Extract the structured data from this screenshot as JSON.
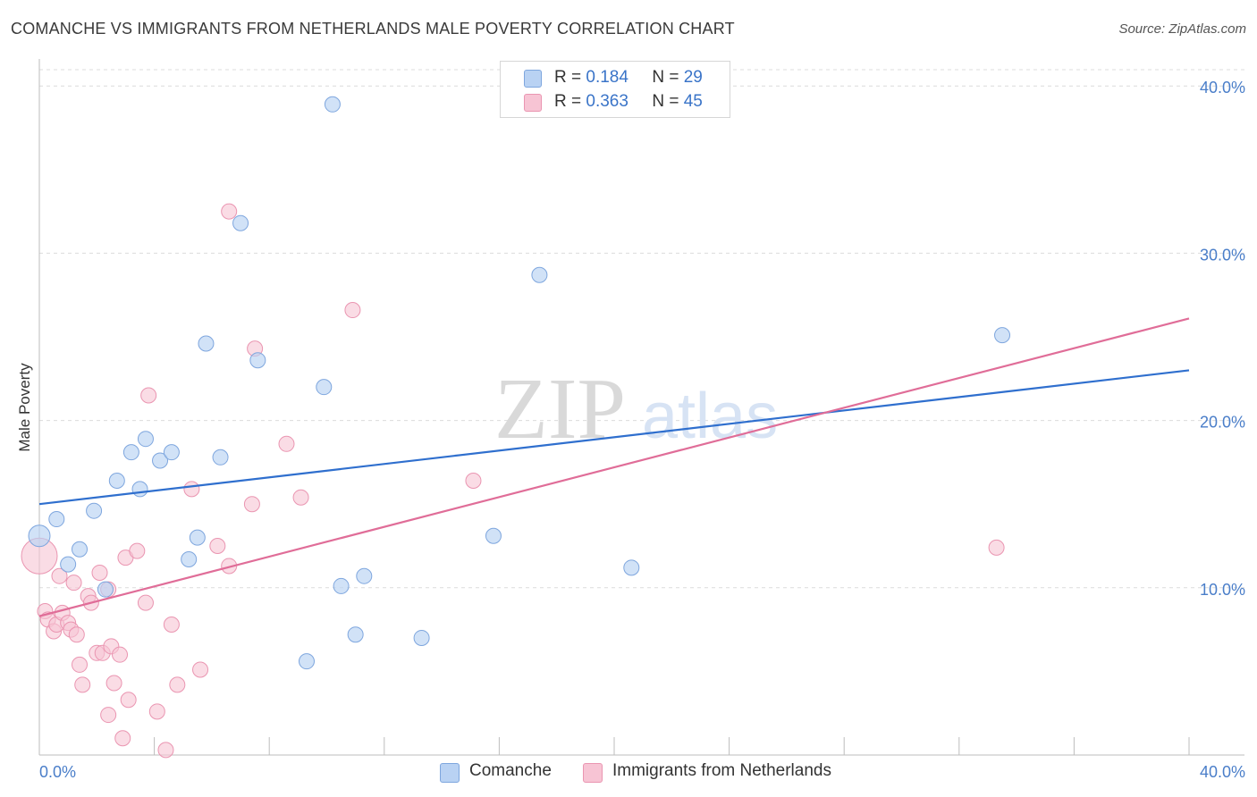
{
  "title": "COMANCHE VS IMMIGRANTS FROM NETHERLANDS MALE POVERTY CORRELATION CHART",
  "source": "Source: ZipAtlas.com",
  "watermark": {
    "zip": "ZIP",
    "atlas": "atlas"
  },
  "legend": {
    "comanche": {
      "r_label": "R =",
      "r_value": "0.184",
      "n_label": "N =",
      "n_value": "29"
    },
    "netherlands": {
      "r_label": "R =",
      "r_value": "0.363",
      "n_label": "N =",
      "n_value": "45"
    }
  },
  "colors": {
    "comanche_fill": "#b9d2f3",
    "comanche_stroke": "#7ea6de",
    "comanche_line": "#2f6fce",
    "netherlands_fill": "#f7c4d4",
    "netherlands_stroke": "#ea95b1",
    "netherlands_line": "#e06d98",
    "tick_text": "#4a7ec9"
  },
  "chart_data": {
    "type": "scatter",
    "title": "COMANCHE VS IMMIGRANTS FROM NETHERLANDS MALE POVERTY CORRELATION CHART",
    "xlabel": "",
    "ylabel": "Male Poverty",
    "xlim": [
      0,
      40
    ],
    "ylim": [
      0,
      40
    ],
    "x_tick_labels": [
      "0.0%",
      "40.0%"
    ],
    "y_ticks": [
      {
        "value": 10,
        "label": "10.0%"
      },
      {
        "value": 20,
        "label": "20.0%"
      },
      {
        "value": 30,
        "label": "30.0%"
      },
      {
        "value": 40,
        "label": "40.0%"
      }
    ],
    "grid": true,
    "legend_position": "top-center",
    "series": [
      {
        "name": "Comanche",
        "points": [
          {
            "x": 0.0,
            "y": 13.1
          },
          {
            "x": 0.6,
            "y": 14.1
          },
          {
            "x": 1.0,
            "y": 11.4
          },
          {
            "x": 1.4,
            "y": 12.3
          },
          {
            "x": 1.9,
            "y": 14.6
          },
          {
            "x": 2.3,
            "y": 9.9
          },
          {
            "x": 2.7,
            "y": 16.4
          },
          {
            "x": 3.2,
            "y": 18.1
          },
          {
            "x": 3.5,
            "y": 15.9
          },
          {
            "x": 3.7,
            "y": 18.9
          },
          {
            "x": 4.2,
            "y": 17.6
          },
          {
            "x": 4.6,
            "y": 18.1
          },
          {
            "x": 5.2,
            "y": 11.7
          },
          {
            "x": 5.5,
            "y": 13.0
          },
          {
            "x": 5.8,
            "y": 24.6
          },
          {
            "x": 6.3,
            "y": 17.8
          },
          {
            "x": 7.0,
            "y": 31.8
          },
          {
            "x": 7.6,
            "y": 23.6
          },
          {
            "x": 9.3,
            "y": 5.6
          },
          {
            "x": 9.9,
            "y": 22.0
          },
          {
            "x": 10.2,
            "y": 38.9
          },
          {
            "x": 10.5,
            "y": 10.1
          },
          {
            "x": 11.0,
            "y": 7.2
          },
          {
            "x": 11.3,
            "y": 10.7
          },
          {
            "x": 13.3,
            "y": 7.0
          },
          {
            "x": 15.8,
            "y": 13.1
          },
          {
            "x": 17.4,
            "y": 28.7
          },
          {
            "x": 20.6,
            "y": 11.2
          },
          {
            "x": 33.5,
            "y": 25.1
          }
        ],
        "trend": {
          "x0": 0,
          "y0": 15.0,
          "x1": 40,
          "y1": 23.0
        }
      },
      {
        "name": "Immigrants from Netherlands",
        "points": [
          {
            "x": 0.0,
            "y": 11.9
          },
          {
            "x": 0.2,
            "y": 8.6
          },
          {
            "x": 0.3,
            "y": 8.1
          },
          {
            "x": 0.5,
            "y": 7.4
          },
          {
            "x": 0.6,
            "y": 7.8
          },
          {
            "x": 0.7,
            "y": 10.7
          },
          {
            "x": 0.8,
            "y": 8.5
          },
          {
            "x": 1.0,
            "y": 7.9
          },
          {
            "x": 1.1,
            "y": 7.5
          },
          {
            "x": 1.2,
            "y": 10.3
          },
          {
            "x": 1.3,
            "y": 7.2
          },
          {
            "x": 1.4,
            "y": 5.4
          },
          {
            "x": 1.5,
            "y": 4.2
          },
          {
            "x": 1.7,
            "y": 9.5
          },
          {
            "x": 1.8,
            "y": 9.1
          },
          {
            "x": 2.0,
            "y": 6.1
          },
          {
            "x": 2.1,
            "y": 10.9
          },
          {
            "x": 2.2,
            "y": 6.1
          },
          {
            "x": 2.4,
            "y": 9.9
          },
          {
            "x": 2.4,
            "y": 2.4
          },
          {
            "x": 2.5,
            "y": 6.5
          },
          {
            "x": 2.6,
            "y": 4.3
          },
          {
            "x": 2.8,
            "y": 6.0
          },
          {
            "x": 2.9,
            "y": 1.0
          },
          {
            "x": 3.0,
            "y": 11.8
          },
          {
            "x": 3.1,
            "y": 3.3
          },
          {
            "x": 3.4,
            "y": 12.2
          },
          {
            "x": 3.7,
            "y": 9.1
          },
          {
            "x": 3.8,
            "y": 21.5
          },
          {
            "x": 4.1,
            "y": 2.6
          },
          {
            "x": 4.4,
            "y": 0.3
          },
          {
            "x": 4.6,
            "y": 7.8
          },
          {
            "x": 4.8,
            "y": 4.2
          },
          {
            "x": 5.3,
            "y": 15.9
          },
          {
            "x": 5.6,
            "y": 5.1
          },
          {
            "x": 6.2,
            "y": 12.5
          },
          {
            "x": 6.6,
            "y": 11.3
          },
          {
            "x": 6.6,
            "y": 32.5
          },
          {
            "x": 7.4,
            "y": 15.0
          },
          {
            "x": 7.5,
            "y": 24.3
          },
          {
            "x": 8.6,
            "y": 18.6
          },
          {
            "x": 9.1,
            "y": 15.4
          },
          {
            "x": 10.9,
            "y": 26.6
          },
          {
            "x": 15.1,
            "y": 16.4
          },
          {
            "x": 33.3,
            "y": 12.4
          }
        ],
        "trend": {
          "x0": 0,
          "y0": 8.3,
          "x1": 40,
          "y1": 26.1
        }
      }
    ]
  },
  "bottom_legend": [
    {
      "label": "Comanche"
    },
    {
      "label": "Immigrants from Netherlands"
    }
  ]
}
